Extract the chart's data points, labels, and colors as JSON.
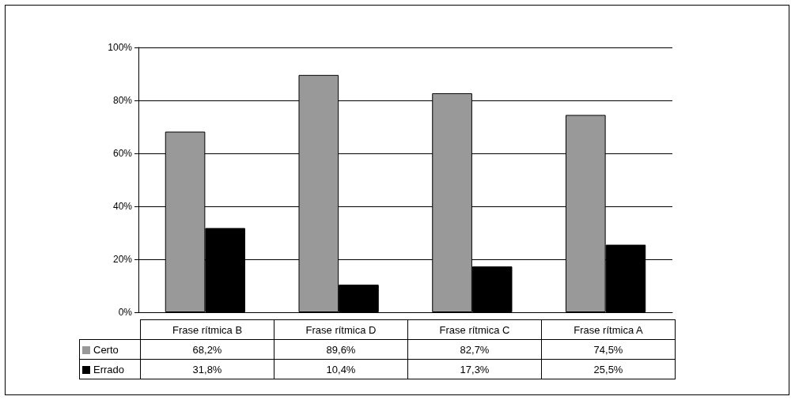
{
  "chart_data": {
    "type": "bar",
    "categories": [
      "Frase rítmica B",
      "Frase rítmica D",
      "Frase rítmica C",
      "Frase rítmica A"
    ],
    "series": [
      {
        "name": "Certo",
        "color": "#999999",
        "values": [
          68.2,
          89.6,
          82.7,
          74.5
        ],
        "value_labels": [
          "68,2%",
          "89,6%",
          "82,7%",
          "74,5%"
        ]
      },
      {
        "name": "Errado",
        "color": "#000000",
        "values": [
          31.8,
          10.4,
          17.3,
          25.5
        ],
        "value_labels": [
          "31,8%",
          "10,4%",
          "17,3%",
          "25,5%"
        ]
      }
    ],
    "ylim": [
      0,
      100
    ],
    "yticks": [
      {
        "value": 0,
        "label": "0%"
      },
      {
        "value": 20,
        "label": "20%"
      },
      {
        "value": 40,
        "label": "40%"
      },
      {
        "value": 60,
        "label": "60%"
      },
      {
        "value": 80,
        "label": "80%"
      },
      {
        "value": 100,
        "label": "100%"
      }
    ],
    "grid": "y",
    "legend": "bottom left"
  }
}
